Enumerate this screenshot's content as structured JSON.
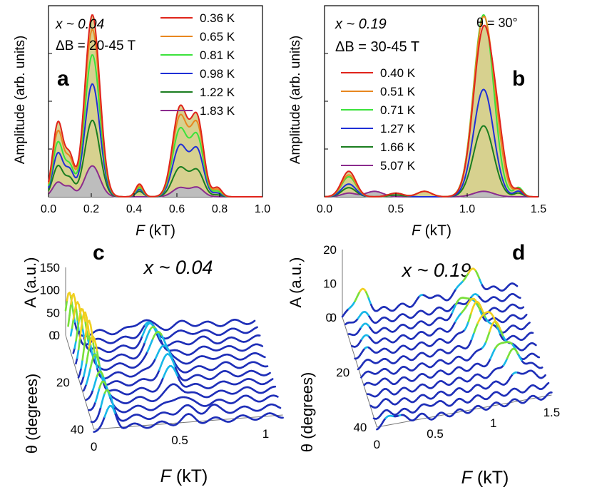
{
  "chart_data": [
    {
      "panel": "a",
      "type": "line",
      "annotation_x": "x ~ 0.04",
      "annotation_field": "ΔB = 20-45 T",
      "xlabel": "F (kT)",
      "ylabel": "Amplitude (arb. units)",
      "xlim": [
        0.0,
        1.0
      ],
      "ylim": [
        0,
        1.05
      ],
      "xticks": [
        "0.0",
        "0.2",
        "0.4",
        "0.6",
        "0.8",
        "1.0"
      ],
      "xtick_values": [
        0.0,
        0.2,
        0.4,
        0.6,
        0.8,
        1.0
      ],
      "series": [
        {
          "name": "0.36 K",
          "color": "#e0241b",
          "peaks": [
            [
              0.045,
              0.41,
              0.025
            ],
            [
              0.1,
              0.2,
              0.02
            ],
            [
              0.205,
              1.0,
              0.035
            ],
            [
              0.425,
              0.07,
              0.018
            ],
            [
              0.615,
              0.49,
              0.035
            ],
            [
              0.695,
              0.42,
              0.03
            ],
            [
              0.79,
              0.05,
              0.02
            ]
          ]
        },
        {
          "name": "0.65 K",
          "color": "#e8871f",
          "peaks": [
            [
              0.045,
              0.36,
              0.025
            ],
            [
              0.1,
              0.18,
              0.02
            ],
            [
              0.205,
              0.92,
              0.035
            ],
            [
              0.425,
              0.06,
              0.018
            ],
            [
              0.615,
              0.44,
              0.035
            ],
            [
              0.695,
              0.38,
              0.03
            ],
            [
              0.79,
              0.04,
              0.02
            ]
          ]
        },
        {
          "name": "0.81 K",
          "color": "#3be23b",
          "peaks": [
            [
              0.045,
              0.3,
              0.025
            ],
            [
              0.1,
              0.15,
              0.02
            ],
            [
              0.205,
              0.78,
              0.035
            ],
            [
              0.425,
              0.05,
              0.018
            ],
            [
              0.615,
              0.37,
              0.035
            ],
            [
              0.695,
              0.32,
              0.03
            ],
            [
              0.79,
              0.03,
              0.02
            ]
          ]
        },
        {
          "name": "0.98 K",
          "color": "#1f2fd6",
          "peaks": [
            [
              0.045,
              0.24,
              0.025
            ],
            [
              0.1,
              0.13,
              0.02
            ],
            [
              0.205,
              0.62,
              0.035
            ],
            [
              0.425,
              0.04,
              0.018
            ],
            [
              0.615,
              0.28,
              0.035
            ],
            [
              0.695,
              0.25,
              0.03
            ],
            [
              0.79,
              0.02,
              0.02
            ]
          ]
        },
        {
          "name": "1.22 K",
          "color": "#1a7d1f",
          "peaks": [
            [
              0.045,
              0.17,
              0.025
            ],
            [
              0.1,
              0.09,
              0.02
            ],
            [
              0.205,
              0.42,
              0.035
            ],
            [
              0.425,
              0.03,
              0.018
            ],
            [
              0.615,
              0.16,
              0.035
            ],
            [
              0.695,
              0.14,
              0.03
            ],
            [
              0.79,
              0.01,
              0.02
            ]
          ]
        },
        {
          "name": "1.83 K",
          "color": "#8b2b8e",
          "peaks": [
            [
              0.045,
              0.08,
              0.025
            ],
            [
              0.1,
              0.05,
              0.02
            ],
            [
              0.205,
              0.17,
              0.035
            ],
            [
              0.615,
              0.05,
              0.035
            ],
            [
              0.695,
              0.05,
              0.03
            ]
          ]
        }
      ]
    },
    {
      "panel": "b",
      "type": "line",
      "annotation_x": "x ~ 0.19",
      "annotation_field": "ΔB = 30-45 T",
      "annotation_angle": "θ = 30°",
      "xlabel": "F (kT)",
      "ylabel": "Amplitude (arb. units)",
      "xlim": [
        0.0,
        1.5
      ],
      "ylim": [
        0,
        1.05
      ],
      "xticks": [
        "0.0",
        "0.5",
        "1.0",
        "1.5"
      ],
      "xtick_values": [
        0.0,
        0.5,
        1.0,
        1.5
      ],
      "series": [
        {
          "name": "0.40 K",
          "color": "#e0241b",
          "peaks": [
            [
              0.17,
              0.14,
              0.05
            ],
            [
              0.5,
              0.02,
              0.05
            ],
            [
              0.7,
              0.03,
              0.05
            ],
            [
              1.115,
              0.92,
              0.07
            ],
            [
              1.22,
              0.18,
              0.05
            ],
            [
              1.36,
              0.04,
              0.03
            ]
          ]
        },
        {
          "name": "0.51 K",
          "color": "#e8871f",
          "peaks": [
            [
              0.17,
              0.12,
              0.05
            ],
            [
              0.5,
              0.02,
              0.05
            ],
            [
              0.7,
              0.03,
              0.05
            ],
            [
              1.115,
              0.98,
              0.07
            ],
            [
              1.22,
              0.1,
              0.05
            ],
            [
              1.36,
              0.04,
              0.03
            ]
          ]
        },
        {
          "name": "0.71 K",
          "color": "#3be23b",
          "peaks": [
            [
              0.17,
              0.11,
              0.05
            ],
            [
              0.5,
              0.02,
              0.05
            ],
            [
              0.7,
              0.03,
              0.05
            ],
            [
              1.115,
              1.0,
              0.07
            ],
            [
              1.36,
              0.05,
              0.03
            ]
          ]
        },
        {
          "name": "1.27 K",
          "color": "#1f2fd6",
          "peaks": [
            [
              0.17,
              0.07,
              0.05
            ],
            [
              0.5,
              0.02,
              0.05
            ],
            [
              1.115,
              0.59,
              0.07
            ],
            [
              1.36,
              0.03,
              0.03
            ]
          ]
        },
        {
          "name": "1.66 K",
          "color": "#1a7d1f",
          "peaks": [
            [
              0.17,
              0.05,
              0.05
            ],
            [
              0.5,
              0.01,
              0.05
            ],
            [
              1.115,
              0.39,
              0.07
            ],
            [
              1.36,
              0.02,
              0.03
            ]
          ]
        },
        {
          "name": "5.07 K",
          "color": "#8b2b8e",
          "peaks": [
            [
              0.17,
              0.02,
              0.05
            ],
            [
              0.35,
              0.03,
              0.06
            ],
            [
              1.115,
              0.03,
              0.07
            ]
          ]
        }
      ]
    },
    {
      "panel": "c",
      "type": "waterfall",
      "title": "x ~ 0.04",
      "zlabel": "A (a.u.)",
      "zticks": [
        "150",
        "100",
        "50",
        "0"
      ],
      "ylabel": "θ (degrees)",
      "yticks": [
        "0",
        "20",
        "40"
      ],
      "xlabel": "F (kT)",
      "xticks": [
        "0",
        "0.5",
        "1"
      ],
      "xlim": [
        0,
        1.1
      ],
      "angles": [
        0,
        4,
        8,
        12,
        16,
        20,
        24,
        28,
        32,
        36,
        40,
        44
      ],
      "traces": [
        {
          "angle": 0,
          "peaks": [
            [
              0.02,
              0.6,
              0.02
            ],
            [
              0.45,
              0.15,
              0.04
            ],
            [
              0.7,
              0.05,
              0.05
            ]
          ]
        },
        {
          "angle": 4,
          "peaks": [
            [
              0.03,
              0.7,
              0.02
            ],
            [
              0.46,
              0.2,
              0.04
            ],
            [
              0.7,
              0.05,
              0.05
            ]
          ]
        },
        {
          "angle": 8,
          "peaks": [
            [
              0.04,
              0.75,
              0.025
            ],
            [
              0.46,
              0.3,
              0.04
            ],
            [
              0.75,
              0.05,
              0.05
            ]
          ]
        },
        {
          "angle": 12,
          "peaks": [
            [
              0.05,
              0.8,
              0.025
            ],
            [
              0.47,
              0.4,
              0.04
            ],
            [
              0.8,
              0.04,
              0.05
            ]
          ]
        },
        {
          "angle": 16,
          "peaks": [
            [
              0.05,
              0.85,
              0.025
            ],
            [
              0.48,
              0.5,
              0.04
            ],
            [
              0.8,
              0.04,
              0.05
            ]
          ]
        },
        {
          "angle": 20,
          "peaks": [
            [
              0.06,
              0.8,
              0.025
            ],
            [
              0.49,
              0.4,
              0.04
            ],
            [
              0.85,
              0.03,
              0.05
            ]
          ]
        },
        {
          "angle": 24,
          "peaks": [
            [
              0.07,
              0.7,
              0.03
            ],
            [
              0.5,
              0.35,
              0.04
            ],
            [
              0.85,
              0.03,
              0.05
            ]
          ]
        },
        {
          "angle": 28,
          "peaks": [
            [
              0.07,
              0.6,
              0.03
            ],
            [
              0.51,
              0.3,
              0.04
            ],
            [
              0.9,
              0.03,
              0.05
            ]
          ]
        },
        {
          "angle": 32,
          "peaks": [
            [
              0.08,
              0.5,
              0.03
            ],
            [
              0.52,
              0.2,
              0.04
            ],
            [
              0.9,
              0.03,
              0.05
            ]
          ]
        },
        {
          "angle": 36,
          "peaks": [
            [
              0.08,
              0.45,
              0.03
            ],
            [
              0.53,
              0.15,
              0.04
            ],
            [
              0.9,
              0.03,
              0.05
            ]
          ]
        },
        {
          "angle": 40,
          "peaks": [
            [
              0.09,
              0.4,
              0.03
            ],
            [
              0.54,
              0.1,
              0.04
            ],
            [
              0.7,
              0.08,
              0.03
            ]
          ]
        },
        {
          "angle": 44,
          "peaks": [
            [
              0.1,
              0.3,
              0.03
            ],
            [
              0.55,
              0.08,
              0.04
            ]
          ]
        }
      ]
    },
    {
      "panel": "d",
      "type": "waterfall",
      "title": "x ~ 0.19",
      "zlabel": "A (a.u.)",
      "zticks": [
        "20",
        "10",
        "0"
      ],
      "ylabel": "θ (degrees)",
      "yticks": [
        "0",
        "20",
        "40"
      ],
      "xlabel": "F (kT)",
      "xticks": [
        "0",
        "0.5",
        "1",
        "1.5"
      ],
      "xlim": [
        0,
        1.5
      ],
      "angles": [
        0,
        4,
        8,
        12,
        16,
        20,
        24,
        28,
        32,
        36,
        40,
        44
      ],
      "traces": [
        {
          "angle": 0,
          "peaks": [
            [
              0.16,
              0.35,
              0.06
            ],
            [
              0.72,
              0.1,
              0.06
            ],
            [
              1.1,
              0.35,
              0.07
            ]
          ]
        },
        {
          "angle": 4,
          "peaks": [
            [
              0.14,
              0.15,
              0.06
            ],
            [
              1.1,
              0.1,
              0.07
            ]
          ]
        },
        {
          "angle": 8,
          "peaks": [
            [
              0.13,
              0.12,
              0.06
            ],
            [
              1.0,
              0.3,
              0.07
            ]
          ]
        },
        {
          "angle": 12,
          "peaks": [
            [
              0.12,
              0.1,
              0.06
            ],
            [
              1.02,
              0.38,
              0.07
            ]
          ]
        },
        {
          "angle": 16,
          "peaks": [
            [
              0.12,
              0.08,
              0.06
            ],
            [
              1.05,
              0.45,
              0.07
            ]
          ]
        },
        {
          "angle": 20,
          "peaks": [
            [
              0.12,
              0.06,
              0.06
            ],
            [
              1.1,
              0.5,
              0.07
            ]
          ]
        },
        {
          "angle": 24,
          "peaks": [
            [
              0.12,
              0.05,
              0.06
            ],
            [
              1.15,
              0.42,
              0.07
            ]
          ]
        },
        {
          "angle": 28,
          "peaks": [
            [
              0.12,
              0.05,
              0.06
            ],
            [
              1.2,
              0.32,
              0.07
            ]
          ]
        },
        {
          "angle": 32,
          "peaks": [
            [
              0.12,
              0.04,
              0.06
            ],
            [
              1.25,
              0.28,
              0.07
            ]
          ]
        },
        {
          "angle": 36,
          "peaks": [
            [
              0.12,
              0.04,
              0.06
            ],
            [
              1.3,
              0.12,
              0.07
            ]
          ]
        },
        {
          "angle": 40,
          "peaks": [
            [
              0.12,
              0.03,
              0.06
            ],
            [
              0.5,
              0.05,
              0.05
            ]
          ]
        },
        {
          "angle": 44,
          "peaks": [
            [
              0.15,
              0.15,
              0.06
            ],
            [
              0.35,
              0.05,
              0.05
            ]
          ]
        }
      ]
    }
  ]
}
